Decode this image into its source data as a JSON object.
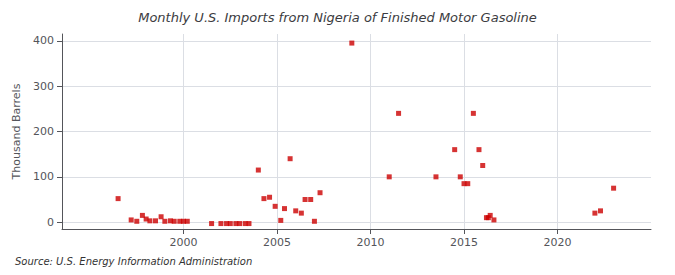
{
  "chart_data": {
    "type": "scatter",
    "title": "Monthly U.S. Imports from Nigeria of Finished Motor Gasoline",
    "ylabel": "Thousand Barrels",
    "source": "Source: U.S. Energy Information Administration",
    "color": "#cc0000",
    "marker": "square",
    "grid": true,
    "xlim": [
      1993.5,
      2025.0
    ],
    "ylim": [
      -15,
      415
    ],
    "xticks": [
      2000,
      2005,
      2010,
      2015,
      2020
    ],
    "yticks": [
      0,
      100,
      200,
      300,
      400
    ],
    "x": [
      1996.5,
      1997.2,
      1997.5,
      1997.8,
      1998.0,
      1998.2,
      1998.5,
      1998.8,
      1999.0,
      1999.3,
      1999.5,
      1999.8,
      2000.0,
      2000.2,
      2001.5,
      2002.0,
      2002.3,
      2002.5,
      2002.8,
      2003.0,
      2003.3,
      2003.5,
      2004.0,
      2004.3,
      2004.6,
      2004.9,
      2005.2,
      2005.4,
      2005.7,
      2006.0,
      2006.3,
      2006.5,
      2006.8,
      2007.0,
      2007.3,
      2009.0,
      2011.0,
      2011.5,
      2013.5,
      2014.5,
      2014.8,
      2015.0,
      2015.2,
      2015.5,
      2015.8,
      2016.0,
      2016.2,
      2016.3,
      2016.4,
      2016.6,
      2022.0,
      2022.3,
      2023.0
    ],
    "values": [
      52,
      5,
      2,
      15,
      7,
      3,
      3,
      12,
      2,
      3,
      2,
      2,
      2,
      2,
      -3,
      -3,
      -3,
      -3,
      -3,
      -3,
      -3,
      -3,
      115,
      52,
      55,
      35,
      4,
      30,
      140,
      25,
      20,
      50,
      50,
      2,
      65,
      395,
      100,
      240,
      100,
      160,
      100,
      85,
      85,
      240,
      160,
      125,
      10,
      10,
      15,
      5,
      20,
      25,
      75
    ]
  }
}
